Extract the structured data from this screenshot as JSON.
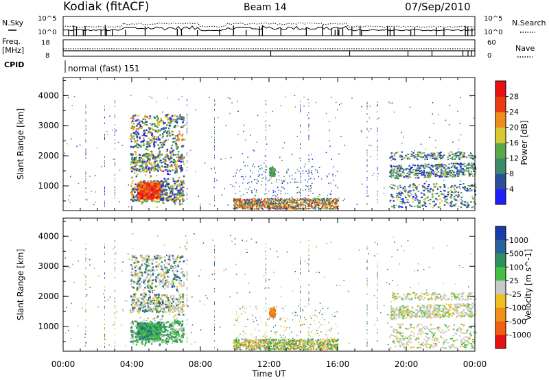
{
  "header": {
    "station": "Kodiak (fitACF)",
    "beam": "Beam 14",
    "date": "07/Sep/2010"
  },
  "top_panels": {
    "nsky_label": "N.Sky",
    "nsky_ticks": [
      "10^5",
      "10^0"
    ],
    "nsearch_label": "N.Search",
    "nsearch_ticks": [
      "10^5",
      "10^0"
    ],
    "freq_label": "Freq.",
    "freq_unit": "[MHz]",
    "freq_ticks": [
      "18",
      "8"
    ],
    "nave_label": "Nave",
    "nave_ticks": [
      "60",
      "0"
    ],
    "cpid_label": "CPID",
    "cpid_text": "normal (fast) 151"
  },
  "chart_data": [
    {
      "type": "heatmap",
      "panel": "power",
      "ylabel": "Slant Range [km]",
      "yticks": [
        "1000",
        "2000",
        "3000",
        "4000"
      ],
      "ylim": [
        180,
        4600
      ],
      "xlim": [
        0,
        24
      ],
      "colorbar_label": "Power [dB]",
      "colorbar_ticks": [
        "4",
        "8",
        "12",
        "16",
        "20",
        "24",
        "28"
      ],
      "colorbar_colors": [
        "#2020ff",
        "#2a4f9a",
        "#3d8a6a",
        "#5aa84a",
        "#d8c832",
        "#f08c1c",
        "#ee3a12",
        "#e81010"
      ],
      "regions": [
        {
          "t0": 3.9,
          "t1": 7.0,
          "r0": 400,
          "r1": 3450
        },
        {
          "t0": 9.9,
          "t1": 16.0,
          "r0": 300,
          "r1": 1700
        },
        {
          "t0": 19.0,
          "t1": 24.0,
          "r0": 300,
          "r1": 2300
        }
      ]
    },
    {
      "type": "heatmap",
      "panel": "velocity",
      "ylabel": "Slant Range [km]",
      "yticks": [
        "1000",
        "2000",
        "3000",
        "4000"
      ],
      "ylim": [
        180,
        4600
      ],
      "xlim": [
        0,
        24
      ],
      "xticks": [
        "00:00",
        "04:00",
        "08:00",
        "12:00",
        "16:00",
        "20:00",
        "00:00"
      ],
      "xlabel": "Time UT",
      "colorbar_label": "Velocity [m s^-1]",
      "colorbar_ticks": [
        "1000",
        "500",
        "100",
        "25",
        "-25",
        "-100",
        "-500",
        "-1000"
      ],
      "colorbar_colors": [
        "#1a3ca8",
        "#2a62a0",
        "#2f8f5a",
        "#44c044",
        "#c8c8c8",
        "#f0c020",
        "#f09018",
        "#f06010",
        "#e81010"
      ],
      "regions": [
        {
          "t0": 3.9,
          "t1": 7.0,
          "r0": 400,
          "r1": 3450
        },
        {
          "t0": 9.9,
          "t1": 16.0,
          "r0": 300,
          "r1": 1700
        },
        {
          "t0": 19.0,
          "t1": 24.0,
          "r0": 300,
          "r1": 2300
        }
      ]
    }
  ]
}
